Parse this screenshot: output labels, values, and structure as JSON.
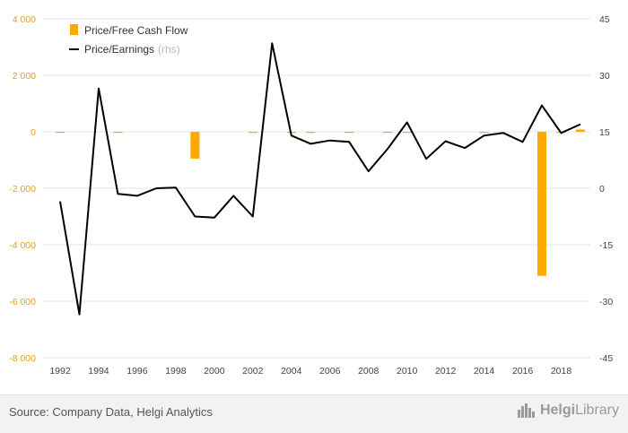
{
  "chart_data": {
    "type": "bar+line",
    "x": [
      1992,
      1993,
      1994,
      1995,
      1996,
      1997,
      1998,
      1999,
      2000,
      2001,
      2002,
      2003,
      2004,
      2005,
      2006,
      2007,
      2008,
      2009,
      2010,
      2011,
      2012,
      2013,
      2014,
      2015,
      2016,
      2017,
      2018,
      2019
    ],
    "x_tick_labels": [
      "1992",
      "1994",
      "1996",
      "1998",
      "2000",
      "2002",
      "2004",
      "2006",
      "2008",
      "2010",
      "2012",
      "2014",
      "2016",
      "2018"
    ],
    "series": [
      {
        "name": "Price/Free Cash Flow",
        "type": "bar",
        "axis": "left",
        "color": "#ffa800",
        "values": [
          -10,
          null,
          null,
          -25,
          null,
          null,
          null,
          -950,
          null,
          null,
          -20,
          null,
          -35,
          -15,
          null,
          -20,
          null,
          -20,
          -30,
          null,
          null,
          null,
          -15,
          null,
          null,
          -5100,
          -40,
          80
        ]
      },
      {
        "name": "Price/Earnings",
        "legend_suffix": "(rhs)",
        "type": "line",
        "axis": "right",
        "color": "#000000",
        "values": [
          -3.5,
          -33.5,
          26.5,
          -1.5,
          -2,
          0,
          0.2,
          -7.5,
          -7.8,
          -2,
          -7.5,
          38.5,
          14,
          11.8,
          12.7,
          12.3,
          4.5,
          10.5,
          17.5,
          7.8,
          12.5,
          10.7,
          14,
          14.7,
          12.3,
          22,
          14.7,
          17
        ]
      }
    ],
    "y_left": {
      "range": [
        -8000,
        4000
      ],
      "ticks": [
        4000,
        2000,
        0,
        -2000,
        -4000,
        -6000,
        -8000
      ],
      "tick_labels": [
        "4 000",
        "2 000",
        "0",
        "-2 000",
        "-4 000",
        "-6 000",
        "-8 000"
      ]
    },
    "y_right": {
      "range": [
        -45,
        45
      ],
      "ticks": [
        45,
        30,
        15,
        0,
        -15,
        -30,
        -45
      ],
      "tick_labels": [
        "45",
        "30",
        "15",
        "0",
        "-15",
        "-30",
        "-45"
      ]
    },
    "grid": true,
    "legend_position": "top-left"
  },
  "footer": {
    "source": "Source: Company Data, Helgi Analytics",
    "brand_name": "Helgi",
    "brand_suffix": "Library"
  }
}
